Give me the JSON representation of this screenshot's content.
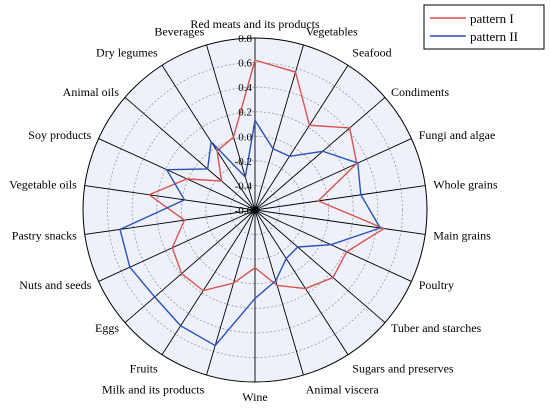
{
  "chart_data": {
    "type": "radar",
    "categories": [
      "Red meats and its products",
      "Vegetables",
      "Seafood",
      "Condiments",
      "Fungi and algae",
      "Whole grains",
      "Main grains",
      "Poultry",
      "Tuber and starches",
      "Sugars and preserves",
      "Animal viscera",
      "Wine",
      "Milk and its products",
      "Fruits",
      "Eggs",
      "Nuts and seeds",
      "Pastry snacks",
      "Vegetable oils",
      "Soy products",
      "Animal oils",
      "Dry legumes",
      "Beverages"
    ],
    "rlim": [
      -0.6,
      0.8
    ],
    "r_ticks": [
      "-0.6",
      "-0.4",
      "-0.2",
      "0.0",
      "0.2",
      "0.4",
      "0.6",
      "0.8"
    ],
    "grid": true,
    "legend_position": "top-right",
    "series": [
      {
        "name": "pattern I",
        "color": "#d9534f",
        "values": [
          0.62,
          0.57,
          0.22,
          0.42,
          0.31,
          -0.08,
          0.46,
          0.22,
          0.24,
          0.16,
          0.04,
          -0.13,
          0.02,
          0.18,
          0.19,
          0.14,
          -0.02,
          0.27,
          0.01,
          -0.24,
          -0.03,
          0.02
        ]
      },
      {
        "name": "pattern II",
        "color": "#2a52be",
        "values": [
          0.13,
          -0.08,
          -0.08,
          0.13,
          0.32,
          0.27,
          0.43,
          0.08,
          -0.14,
          -0.13,
          0.0,
          0.12,
          0.55,
          0.52,
          0.48,
          0.52,
          0.51,
          -0.02,
          0.19,
          -0.09,
          0.06,
          -0.32
        ]
      }
    ]
  }
}
